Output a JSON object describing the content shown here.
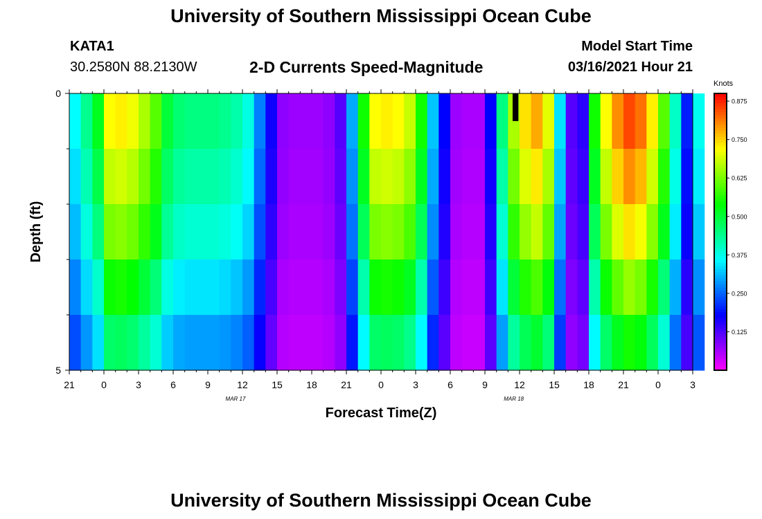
{
  "header": {
    "title": "University of Southern Mississippi Ocean Cube",
    "station_id": "KATA1",
    "coordinates": "30.2580N 88.2130W",
    "plot_title": "2-D Currents Speed-Magnitude",
    "model_start_label": "Model Start Time",
    "model_start_value": "03/16/2021 Hour 21"
  },
  "footer": {
    "title": "University of Southern Mississippi Ocean Cube"
  },
  "chart_data": {
    "type": "heatmap",
    "title": "2-D Currents Speed-Magnitude",
    "xlabel": "Forecast Time(Z)",
    "ylabel": "Depth (ft)",
    "xlim": [
      0,
      54
    ],
    "ylim": [
      0,
      5
    ],
    "x_ticks": [
      {
        "t": 0,
        "label": "21"
      },
      {
        "t": 3,
        "label": "0"
      },
      {
        "t": 6,
        "label": "3"
      },
      {
        "t": 9,
        "label": "6"
      },
      {
        "t": 12,
        "label": "9"
      },
      {
        "t": 15,
        "label": "12"
      },
      {
        "t": 18,
        "label": "15"
      },
      {
        "t": 21,
        "label": "18"
      },
      {
        "t": 24,
        "label": "21"
      },
      {
        "t": 27,
        "label": "0"
      },
      {
        "t": 30,
        "label": "3"
      },
      {
        "t": 33,
        "label": "6"
      },
      {
        "t": 36,
        "label": "9"
      },
      {
        "t": 39,
        "label": "12"
      },
      {
        "t": 42,
        "label": "15"
      },
      {
        "t": 45,
        "label": "18"
      },
      {
        "t": 48,
        "label": "21"
      },
      {
        "t": 51,
        "label": "0"
      },
      {
        "t": 54,
        "label": "3"
      }
    ],
    "date_labels": [
      {
        "t": 14.4,
        "label": "MAR 17"
      },
      {
        "t": 38.5,
        "label": "MAR 18"
      }
    ],
    "y_ticks": [
      {
        "d": 0,
        "label": "0"
      },
      {
        "d": 5,
        "label": "5"
      }
    ],
    "colorbar": {
      "label": "Knots",
      "min": 0.0,
      "max": 0.9,
      "tick_values": [
        0.125,
        0.25,
        0.375,
        0.5,
        0.625,
        0.75,
        0.875
      ],
      "tick_labels": [
        "0.125",
        "0.250",
        "0.375",
        "0.500",
        "0.625",
        "0.750",
        "0.875"
      ]
    },
    "depth_layers": [
      0.5,
      1.5,
      2.5,
      3.5,
      4.5
    ],
    "base_profile": [
      0.36,
      0.44,
      0.52,
      0.72,
      0.73,
      0.71,
      0.66,
      0.6,
      0.5,
      0.46,
      0.45,
      0.45,
      0.45,
      0.44,
      0.42,
      0.38,
      0.27,
      0.17,
      0.08,
      0.07,
      0.07,
      0.07,
      0.08,
      0.12,
      0.3,
      0.55,
      0.72,
      0.73,
      0.72,
      0.68,
      0.55,
      0.32,
      0.18,
      0.07,
      0.06,
      0.06,
      0.18,
      0.45,
      0.66,
      0.74,
      0.78,
      0.7,
      0.34,
      0.12,
      0.15,
      0.55,
      0.72,
      0.8,
      0.85,
      0.82,
      0.73,
      0.6,
      0.4,
      0.2,
      0.37
    ],
    "layer_factors": [
      1.0,
      0.94,
      0.87,
      0.76,
      0.65
    ],
    "missing": [
      {
        "t0": 38.4,
        "t1": 38.9,
        "d0": 0,
        "d1": 0.5
      }
    ]
  }
}
